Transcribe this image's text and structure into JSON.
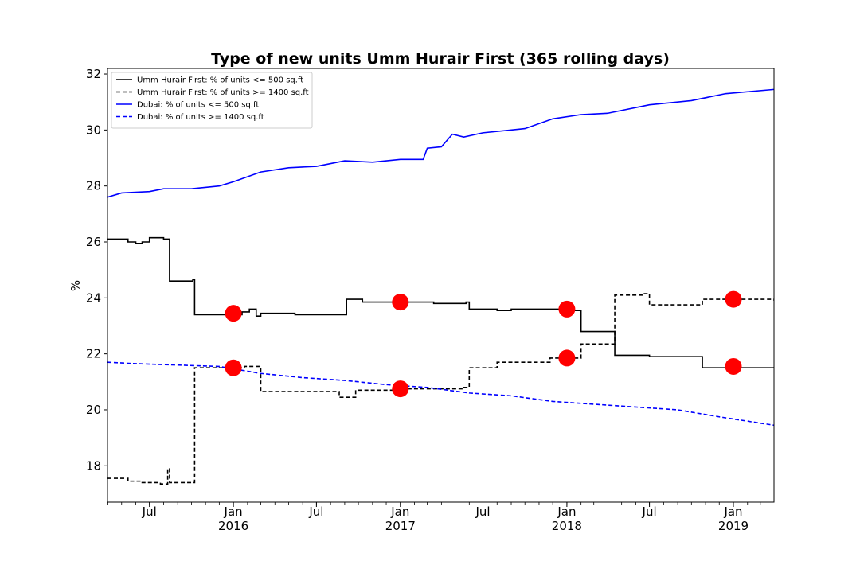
{
  "chart_data": {
    "type": "line",
    "title": "Type of new units Umm Hurair First (365 rolling days)",
    "xlabel": "",
    "ylabel": "%",
    "xlim": [
      "2015-03-31",
      "2019-03-31"
    ],
    "ylim": [
      16.7,
      32.2
    ],
    "yticks": [
      18,
      20,
      22,
      24,
      26,
      28,
      30,
      32
    ],
    "xticks": [
      {
        "date": "2015-07-01",
        "label": "Jul",
        "year": ""
      },
      {
        "date": "2016-01-01",
        "label": "Jan",
        "year": "2016"
      },
      {
        "date": "2016-07-01",
        "label": "Jul",
        "year": ""
      },
      {
        "date": "2017-01-01",
        "label": "Jan",
        "year": "2017"
      },
      {
        "date": "2017-07-01",
        "label": "Jul",
        "year": ""
      },
      {
        "date": "2018-01-01",
        "label": "Jan",
        "year": "2018"
      },
      {
        "date": "2018-07-01",
        "label": "Jul",
        "year": ""
      },
      {
        "date": "2019-01-01",
        "label": "Jan",
        "year": "2019"
      }
    ],
    "legend_position": "top-left",
    "grid": false,
    "series": [
      {
        "name": "Umm Hurair First: % of units <= 500 sq.ft",
        "color": "#000000",
        "dash": "solid",
        "step": true,
        "points": [
          [
            "2015-03-31",
            26.1
          ],
          [
            "2015-05-15",
            26.0
          ],
          [
            "2015-06-01",
            25.95
          ],
          [
            "2015-06-15",
            26.0
          ],
          [
            "2015-07-01",
            26.15
          ],
          [
            "2015-08-01",
            26.1
          ],
          [
            "2015-08-14",
            24.6
          ],
          [
            "2015-10-04",
            24.65
          ],
          [
            "2015-10-08",
            23.4
          ],
          [
            "2016-01-20",
            23.5
          ],
          [
            "2016-02-05",
            23.6
          ],
          [
            "2016-02-20",
            23.35
          ],
          [
            "2016-03-01",
            23.45
          ],
          [
            "2016-05-15",
            23.4
          ],
          [
            "2016-09-05",
            23.95
          ],
          [
            "2016-10-10",
            23.85
          ],
          [
            "2017-03-15",
            23.8
          ],
          [
            "2017-05-25",
            23.85
          ],
          [
            "2017-06-01",
            23.6
          ],
          [
            "2017-08-01",
            23.55
          ],
          [
            "2017-09-01",
            23.6
          ],
          [
            "2018-01-15",
            23.55
          ],
          [
            "2018-02-01",
            22.8
          ],
          [
            "2018-04-16",
            21.95
          ],
          [
            "2018-07-01",
            21.9
          ],
          [
            "2018-10-25",
            21.5
          ],
          [
            "2019-03-31",
            21.5
          ]
        ]
      },
      {
        "name": "Umm Hurair First: % of units >= 1400 sq.ft",
        "color": "#000000",
        "dash": "dashed",
        "step": true,
        "points": [
          [
            "2015-03-31",
            17.55
          ],
          [
            "2015-05-15",
            17.45
          ],
          [
            "2015-06-15",
            17.4
          ],
          [
            "2015-07-25",
            17.35
          ],
          [
            "2015-08-10",
            17.9
          ],
          [
            "2015-08-14",
            17.4
          ],
          [
            "2015-10-08",
            21.5
          ],
          [
            "2016-01-25",
            21.55
          ],
          [
            "2016-03-01",
            20.65
          ],
          [
            "2016-08-20",
            20.45
          ],
          [
            "2016-09-25",
            20.7
          ],
          [
            "2017-01-01",
            20.75
          ],
          [
            "2017-05-20",
            20.8
          ],
          [
            "2017-06-01",
            21.5
          ],
          [
            "2017-08-01",
            21.7
          ],
          [
            "2017-11-25",
            21.85
          ],
          [
            "2018-02-01",
            22.35
          ],
          [
            "2018-04-16",
            24.1
          ],
          [
            "2018-06-15",
            24.15
          ],
          [
            "2018-07-01",
            23.75
          ],
          [
            "2018-10-25",
            23.95
          ],
          [
            "2019-03-31",
            23.9
          ]
        ]
      },
      {
        "name": "Dubai: % of units <= 500 sq.ft",
        "color": "#0000ff",
        "dash": "solid",
        "step": false,
        "points": [
          [
            "2015-03-31",
            27.6
          ],
          [
            "2015-05-01",
            27.75
          ],
          [
            "2015-07-01",
            27.8
          ],
          [
            "2015-08-01",
            27.9
          ],
          [
            "2015-10-01",
            27.9
          ],
          [
            "2015-12-01",
            28.0
          ],
          [
            "2016-01-01",
            28.15
          ],
          [
            "2016-03-01",
            28.5
          ],
          [
            "2016-05-01",
            28.65
          ],
          [
            "2016-07-01",
            28.7
          ],
          [
            "2016-09-01",
            28.9
          ],
          [
            "2016-11-01",
            28.85
          ],
          [
            "2017-01-01",
            28.95
          ],
          [
            "2017-02-20",
            28.95
          ],
          [
            "2017-03-01",
            29.35
          ],
          [
            "2017-04-01",
            29.4
          ],
          [
            "2017-04-25",
            29.85
          ],
          [
            "2017-05-20",
            29.75
          ],
          [
            "2017-07-01",
            29.9
          ],
          [
            "2017-10-01",
            30.05
          ],
          [
            "2017-12-01",
            30.4
          ],
          [
            "2018-02-01",
            30.55
          ],
          [
            "2018-04-01",
            30.6
          ],
          [
            "2018-07-01",
            30.9
          ],
          [
            "2018-10-01",
            31.05
          ],
          [
            "2018-12-15",
            31.3
          ],
          [
            "2019-03-31",
            31.45
          ]
        ]
      },
      {
        "name": "Dubai: % of units >= 1400 sq.ft",
        "color": "#0000ff",
        "dash": "dashed",
        "step": false,
        "points": [
          [
            "2015-03-31",
            21.7
          ],
          [
            "2015-06-01",
            21.65
          ],
          [
            "2015-09-01",
            21.6
          ],
          [
            "2015-12-01",
            21.55
          ],
          [
            "2016-03-01",
            21.3
          ],
          [
            "2016-06-01",
            21.15
          ],
          [
            "2016-09-01",
            21.05
          ],
          [
            "2016-12-01",
            20.9
          ],
          [
            "2017-03-01",
            20.8
          ],
          [
            "2017-06-01",
            20.6
          ],
          [
            "2017-09-01",
            20.5
          ],
          [
            "2017-12-01",
            20.3
          ],
          [
            "2018-03-01",
            20.2
          ],
          [
            "2018-06-01",
            20.1
          ],
          [
            "2018-09-01",
            20.0
          ],
          [
            "2018-12-01",
            19.75
          ],
          [
            "2019-03-31",
            19.45
          ]
        ]
      }
    ],
    "markers": [
      {
        "date": "2016-01-01",
        "value": 23.45,
        "color": "#ff0000"
      },
      {
        "date": "2016-01-01",
        "value": 21.5,
        "color": "#ff0000"
      },
      {
        "date": "2017-01-01",
        "value": 23.85,
        "color": "#ff0000"
      },
      {
        "date": "2017-01-01",
        "value": 20.75,
        "color": "#ff0000"
      },
      {
        "date": "2018-01-01",
        "value": 23.6,
        "color": "#ff0000"
      },
      {
        "date": "2018-01-01",
        "value": 21.85,
        "color": "#ff0000"
      },
      {
        "date": "2019-01-01",
        "value": 23.95,
        "color": "#ff0000"
      },
      {
        "date": "2019-01-01",
        "value": 21.55,
        "color": "#ff0000"
      }
    ]
  }
}
